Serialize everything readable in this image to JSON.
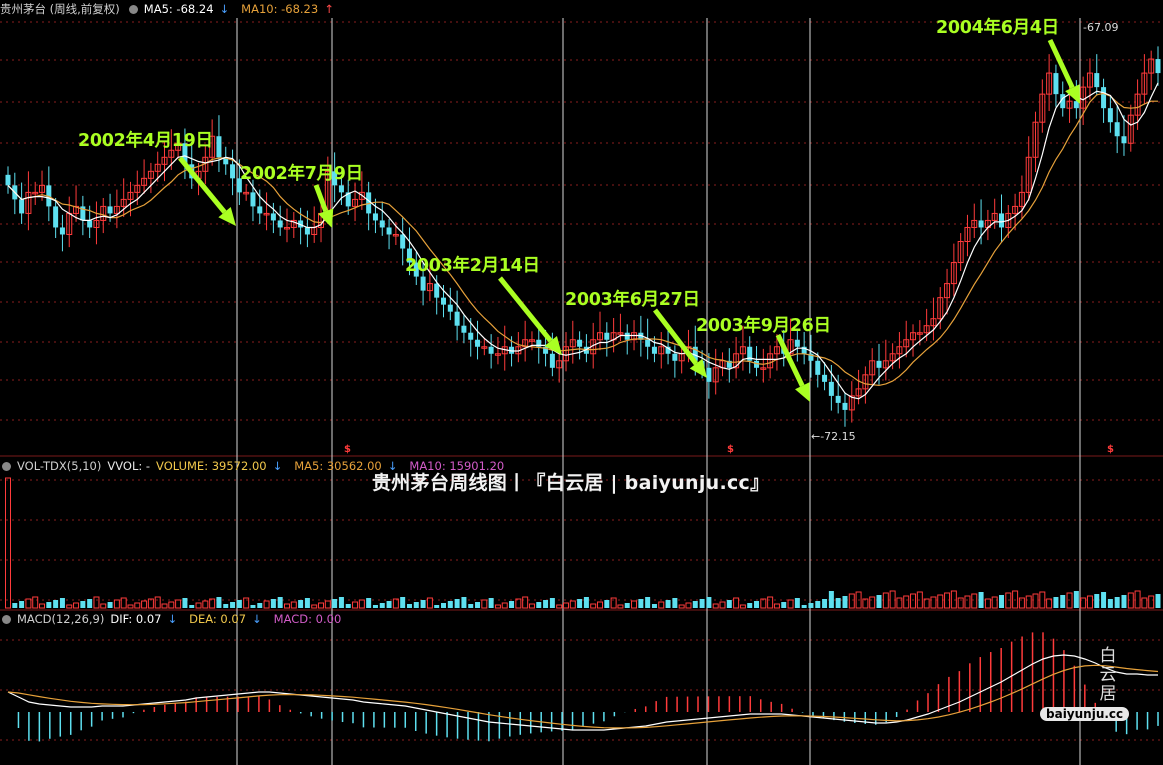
{
  "main_panel": {
    "title": "贵州茅台 (周线,前复权)",
    "ma5_label": "MA5: -68.24",
    "ma5_arrow": "↓",
    "ma10_label": "MA10: -68.23",
    "ma10_arrow": "↑"
  },
  "volume_panel": {
    "indicator": "VOL-TDX(5,10)",
    "vvol_label": "VVOL: -",
    "volume_label": "VOLUME: 39572.00",
    "volume_arrow": "↓",
    "ma5_label": "MA5: 30562.00",
    "ma5_arrow": "↓",
    "ma10_label": "MA10: 15901.20"
  },
  "macd_panel": {
    "indicator": "MACD(12,26,9)",
    "dif_label": "DIF: 0.07",
    "dif_arrow": "↓",
    "dea_label": "DEA: 0.07",
    "dea_arrow": "↓",
    "macd_label": "MACD: 0.00"
  },
  "annotations": [
    {
      "label": "2002年4月19日"
    },
    {
      "label": "2002年7月9日"
    },
    {
      "label": "2003年2月14日"
    },
    {
      "label": "2003年6月27日"
    },
    {
      "label": "2003年9月26日"
    },
    {
      "label": "2004年6月4日"
    }
  ],
  "price_markers": {
    "high_label": "-67.09",
    "low_label": "←-72.15"
  },
  "watermark": "贵州茅台周线图丨『白云居 | baiyunju.cc』",
  "logo": {
    "chars": "白云居",
    "url": "baiyunju.cc"
  },
  "colors": {
    "background": "#000000",
    "up_candle": "#ff3b3b",
    "down_candle": "#5ee0f0",
    "ma5": "#ffffff",
    "ma10": "#e6a13a",
    "annotation": "#aaff22",
    "grid": "#8a1e1e",
    "vline": "#d8d8d8"
  },
  "chart_data": {
    "type": "candlestick",
    "title": "贵州茅台 (周线,前复权)",
    "period": "weekly",
    "marked_weeks": [
      "2002年4月19日",
      "2002年7月9日",
      "2003年2月14日",
      "2003年6月27日",
      "2003年9月26日",
      "2004年6月4日"
    ],
    "price_high_label": -67.09,
    "price_low_label": -72.15,
    "ma5_last": -68.24,
    "ma10_last": -68.23,
    "volume_last": 39572.0,
    "volume_ma5_last": 30562.0,
    "volume_ma10_last": 15901.2,
    "dif_last": 0.07,
    "dea_last": 0.07,
    "macd_last": 0.0,
    "close_series": [
      -68.9,
      -69.1,
      -69.3,
      -69.0,
      -69.0,
      -68.9,
      -69.2,
      -69.5,
      -69.6,
      -69.3,
      -69.2,
      -69.4,
      -69.5,
      -69.4,
      -69.2,
      -69.3,
      -69.2,
      -69.1,
      -69.0,
      -68.9,
      -68.8,
      -68.7,
      -68.6,
      -68.5,
      -68.4,
      -68.3,
      -68.6,
      -68.8,
      -68.7,
      -68.5,
      -68.2,
      -68.5,
      -68.6,
      -68.8,
      -69.0,
      -69.0,
      -69.2,
      -69.3,
      -69.3,
      -69.4,
      -69.5,
      -69.5,
      -69.4,
      -69.5,
      -69.6,
      -69.5,
      -69.3,
      -68.7,
      -68.9,
      -69.0,
      -69.2,
      -69.1,
      -69.0,
      -69.3,
      -69.4,
      -69.5,
      -69.6,
      -69.6,
      -69.8,
      -70.0,
      -70.2,
      -70.4,
      -70.3,
      -70.5,
      -70.6,
      -70.7,
      -70.9,
      -71.0,
      -71.1,
      -71.2,
      -71.2,
      -71.3,
      -71.3,
      -71.2,
      -71.3,
      -71.2,
      -71.1,
      -71.1,
      -71.2,
      -71.3,
      -71.5,
      -71.4,
      -71.2,
      -71.1,
      -71.2,
      -71.3,
      -71.1,
      -71.0,
      -71.1,
      -71.0,
      -71.0,
      -71.1,
      -71.0,
      -71.1,
      -71.2,
      -71.3,
      -71.2,
      -71.3,
      -71.4,
      -71.3,
      -71.2,
      -71.4,
      -71.5,
      -71.7,
      -71.5,
      -71.4,
      -71.5,
      -71.3,
      -71.2,
      -71.4,
      -71.5,
      -71.5,
      -71.3,
      -71.2,
      -71.3,
      -71.1,
      -71.2,
      -71.3,
      -71.4,
      -71.6,
      -71.7,
      -71.9,
      -72.0,
      -72.1,
      -71.9,
      -71.8,
      -71.6,
      -71.4,
      -71.5,
      -71.4,
      -71.3,
      -71.2,
      -71.1,
      -71.0,
      -71.0,
      -70.9,
      -70.8,
      -70.5,
      -70.3,
      -70.0,
      -69.7,
      -69.5,
      -69.4,
      -69.5,
      -69.4,
      -69.3,
      -69.5,
      -69.3,
      -69.2,
      -69.0,
      -68.5,
      -68.0,
      -67.6,
      -67.3,
      -67.6,
      -67.8,
      -67.7,
      -67.8,
      -67.5,
      -67.3,
      -67.5,
      -67.8,
      -68.0,
      -68.2,
      -68.3,
      -67.9,
      -67.6,
      -67.3,
      -67.1,
      -67.3
    ],
    "dif_series": [
      0.0,
      -0.05,
      -0.1,
      -0.12,
      -0.13,
      -0.14,
      -0.15,
      -0.15,
      -0.15,
      -0.14,
      -0.14,
      -0.14,
      -0.13,
      -0.12,
      -0.11,
      -0.1,
      -0.09,
      -0.08,
      -0.06,
      -0.05,
      -0.04,
      -0.03,
      -0.02,
      -0.01,
      0.0,
      0.0,
      -0.01,
      -0.02,
      -0.03,
      -0.04,
      -0.05,
      -0.06,
      -0.07,
      -0.08,
      -0.1,
      -0.11,
      -0.12,
      -0.13,
      -0.14,
      -0.16,
      -0.18,
      -0.2,
      -0.22,
      -0.24,
      -0.26,
      -0.28,
      -0.3,
      -0.31,
      -0.32,
      -0.33,
      -0.34,
      -0.35,
      -0.36,
      -0.37,
      -0.38,
      -0.38,
      -0.38,
      -0.38,
      -0.37,
      -0.36,
      -0.35,
      -0.34,
      -0.32,
      -0.3,
      -0.29,
      -0.28,
      -0.27,
      -0.26,
      -0.25,
      -0.24,
      -0.23,
      -0.22,
      -0.22,
      -0.22,
      -0.22,
      -0.23,
      -0.24,
      -0.25,
      -0.26,
      -0.27,
      -0.28,
      -0.29,
      -0.3,
      -0.31,
      -0.31,
      -0.3,
      -0.28,
      -0.25,
      -0.22,
      -0.18,
      -0.14,
      -0.1,
      -0.05,
      0.0,
      0.05,
      0.1,
      0.16,
      0.22,
      0.28,
      0.33,
      0.36,
      0.37,
      0.36,
      0.33,
      0.29,
      0.24,
      0.2,
      0.18,
      0.18,
      0.17,
      0.17
    ]
  }
}
